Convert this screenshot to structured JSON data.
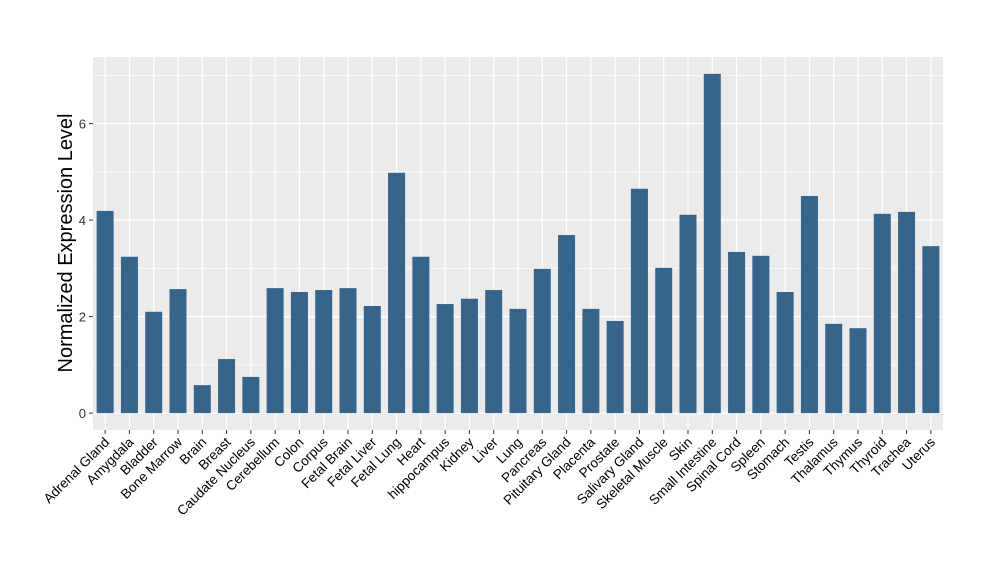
{
  "chart_data": {
    "type": "bar",
    "title": "",
    "xlabel": "",
    "ylabel": "Normalized Expression Level",
    "ylim": [
      -0.35,
      7.38
    ],
    "yticks": [
      0,
      2,
      4,
      6
    ],
    "grid": true,
    "bar_color": "#36648B",
    "panel_color": "#EBEBEB",
    "categories": [
      "Adrenal Gland",
      "Amygdala",
      "Bladder",
      "Bone Marrow",
      "Brain",
      "Breast",
      "Caudate Nucleus",
      "Cerebellum",
      "Colon",
      "Corpus",
      "Fetal Brain",
      "Fetal Liver",
      "Fetal Lung",
      "Heart",
      "hippocampus",
      "Kidney",
      "Liver",
      "Lung",
      "Pancreas",
      "Pituitary Gland",
      "Placenta",
      "Prostate",
      "Salivary Gland",
      "Skeletal Muscle",
      "Skin",
      "Small Intestine",
      "Spinal Cord",
      "Spleen",
      "Stomach",
      "Testis",
      "Thalamus",
      "Thymus",
      "Thyroid",
      "Trachea",
      "Uterus"
    ],
    "values": [
      4.19,
      3.24,
      2.1,
      2.57,
      0.58,
      1.12,
      0.75,
      2.59,
      2.51,
      2.55,
      2.59,
      2.22,
      4.98,
      3.24,
      2.26,
      2.37,
      2.55,
      2.16,
      2.99,
      3.69,
      2.16,
      1.91,
      4.65,
      3.01,
      4.11,
      7.03,
      3.34,
      3.26,
      2.51,
      4.5,
      1.85,
      1.76,
      4.13,
      4.17,
      3.46
    ]
  }
}
